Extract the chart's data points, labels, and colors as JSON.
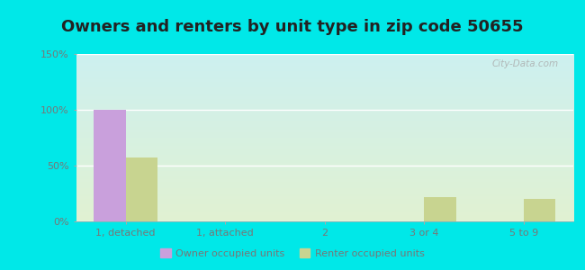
{
  "title": "Owners and renters by unit type in zip code 50655",
  "categories": [
    "1, detached",
    "1, attached",
    "2",
    "3 or 4",
    "5 to 9"
  ],
  "owner_values": [
    100,
    0,
    0,
    0,
    0
  ],
  "renter_values": [
    57,
    0,
    0,
    22,
    20
  ],
  "owner_color": "#c9a0dc",
  "renter_color": "#c8d490",
  "ylim": [
    0,
    150
  ],
  "yticks": [
    0,
    50,
    100,
    150
  ],
  "ytick_labels": [
    "0%",
    "50%",
    "100%",
    "150%"
  ],
  "outer_background": "#00e8e8",
  "title_fontsize": 13,
  "bar_width": 0.32,
  "legend_owner": "Owner occupied units",
  "legend_renter": "Renter occupied units",
  "watermark": "City-Data.com"
}
